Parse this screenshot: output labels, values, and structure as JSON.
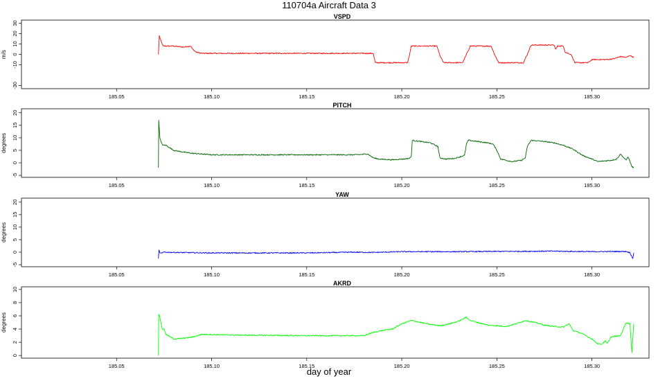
{
  "title": "110704a   Aircraft Data 3",
  "xlabel": "day of year",
  "chart_data": [
    {
      "type": "line",
      "title": "VSPD",
      "ylabel": "m/s",
      "color": "#ff0000",
      "xlim": [
        185.0,
        185.33
      ],
      "ylim": [
        -33,
        33
      ],
      "xticks": [
        185.05,
        185.1,
        185.15,
        185.2,
        185.25,
        185.3
      ],
      "xtick_labels": [
        "185.05",
        "185.10",
        "185.15",
        "185.20",
        "185.25",
        "185.30"
      ],
      "yticks": [
        -30,
        -10,
        0,
        10,
        20,
        30
      ],
      "ytick_labels": [
        "-30",
        "-10",
        "0",
        "10",
        "20",
        "30"
      ],
      "series": [
        {
          "x": [
            185.072,
            185.0725,
            185.0735,
            185.0745,
            185.076,
            185.08,
            185.085,
            185.089,
            185.09,
            185.092,
            185.095,
            185.12,
            185.15,
            185.175,
            185.1778,
            185.1785,
            185.185,
            185.186,
            185.195,
            185.203,
            185.204,
            185.205,
            185.21,
            185.2185,
            185.22,
            185.222,
            185.225,
            185.232,
            185.234,
            185.236,
            185.24,
            185.247,
            185.249,
            185.251,
            185.26,
            185.264,
            185.266,
            185.268,
            185.275,
            185.28,
            185.281,
            185.282,
            185.285,
            185.286,
            185.289,
            185.291,
            185.298,
            185.3,
            185.308,
            185.312,
            185.315,
            185.318,
            185.32,
            185.322
          ],
          "y": [
            0,
            18,
            12,
            8,
            8,
            8,
            7,
            8,
            5,
            2,
            1,
            1,
            1,
            1,
            1,
            1,
            1,
            -8,
            -8,
            -8,
            -1,
            8,
            8,
            8,
            -1,
            -8,
            -8,
            -8,
            0,
            8,
            8,
            8,
            -1,
            -8,
            -8,
            -8,
            0,
            9,
            9,
            9,
            5,
            8,
            8,
            2,
            0,
            -8,
            -8,
            -5,
            -5,
            -4,
            -2,
            -3,
            -1,
            -3
          ]
        }
      ]
    },
    {
      "type": "line",
      "title": "PITCH",
      "ylabel": "degrees",
      "color": "#006400",
      "xlim": [
        185.0,
        185.33
      ],
      "ylim": [
        -5.8,
        21.6
      ],
      "xticks": [
        185.05,
        185.1,
        185.15,
        185.2,
        185.25,
        185.3
      ],
      "xtick_labels": [
        "185.05",
        "185.10",
        "185.15",
        "185.20",
        "185.25",
        "185.30"
      ],
      "yticks": [
        -5,
        0,
        5,
        10,
        15,
        20
      ],
      "ytick_labels": [
        "-5",
        "0",
        "5",
        "10",
        "15",
        "20"
      ],
      "series": [
        {
          "x": [
            185.072,
            185.0722,
            185.0728,
            185.0735,
            185.0745,
            185.076,
            185.078,
            185.08,
            185.085,
            185.09,
            185.095,
            185.1,
            185.13,
            185.16,
            185.175,
            185.1785,
            185.182,
            185.185,
            185.188,
            185.195,
            185.2,
            185.201,
            185.204,
            185.205,
            185.2055,
            185.21,
            185.215,
            185.219,
            185.22,
            185.223,
            185.228,
            185.231,
            185.233,
            185.234,
            185.235,
            185.24,
            185.245,
            185.248,
            185.25,
            185.252,
            185.258,
            185.263,
            185.265,
            185.266,
            185.268,
            185.275,
            185.28,
            185.285,
            185.29,
            185.295,
            185.3,
            185.303,
            185.31,
            185.313,
            185.315,
            185.318,
            185.319,
            185.32,
            185.321,
            185.322
          ],
          "y": [
            -2,
            17,
            10,
            8,
            7,
            7,
            6,
            5,
            4.3,
            3.8,
            3.5,
            3.2,
            3.2,
            3.2,
            3.2,
            3.3,
            3.6,
            2.0,
            1.5,
            1.2,
            1.5,
            1.5,
            1.8,
            2.5,
            9.0,
            8.5,
            8.0,
            6.5,
            2.0,
            1.5,
            1.8,
            2.5,
            3.0,
            7.5,
            9.0,
            8.5,
            8.0,
            7.5,
            5.0,
            1.5,
            0.5,
            1.0,
            2.0,
            6.5,
            9.0,
            8.5,
            8.0,
            7.0,
            5.5,
            3.0,
            1.5,
            0.5,
            1.0,
            1.5,
            3.5,
            1.0,
            2.5,
            0.5,
            -1.5,
            -2.0
          ]
        }
      ]
    },
    {
      "type": "line",
      "title": "YAW",
      "ylabel": "degrees",
      "color": "#0000ff",
      "xlim": [
        185.0,
        185.33
      ],
      "ylim": [
        -5.8,
        21.6
      ],
      "xticks": [
        185.05,
        185.1,
        185.15,
        185.2,
        185.25,
        185.3
      ],
      "xtick_labels": [
        "185.05",
        "185.10",
        "185.15",
        "185.20",
        "185.25",
        "185.30"
      ],
      "yticks": [
        -5,
        0,
        5,
        10,
        15,
        20
      ],
      "ytick_labels": [
        "-5",
        "0",
        "5",
        "10",
        "15",
        "20"
      ],
      "series": [
        {
          "x": [
            185.072,
            185.0723,
            185.073,
            185.075,
            185.09,
            185.1,
            185.15,
            185.175,
            185.185,
            185.2,
            185.23,
            185.25,
            185.28,
            185.3,
            185.318,
            185.32,
            185.3215,
            185.322
          ],
          "y": [
            -2.5,
            0.8,
            -0.5,
            0,
            -0.2,
            -0.3,
            -0.3,
            0,
            -0.1,
            0.2,
            0.2,
            0.3,
            0.4,
            0.2,
            0.3,
            -0.2,
            -2.5,
            -0.2
          ]
        }
      ]
    },
    {
      "type": "line",
      "title": "AKRD",
      "ylabel": "degrees",
      "color": "#00ff00",
      "xlim": [
        185.0,
        185.33
      ],
      "ylim": [
        -0.4,
        10.4
      ],
      "xticks": [
        185.05,
        185.1,
        185.15,
        185.2,
        185.25,
        185.3
      ],
      "xtick_labels": [
        "185.05",
        "185.10",
        "185.15",
        "185.20",
        "185.25",
        "185.30"
      ],
      "yticks": [
        0,
        2,
        4,
        6,
        8,
        10
      ],
      "ytick_labels": [
        "0",
        "2",
        "4",
        "6",
        "8",
        "10"
      ],
      "series": [
        {
          "x": [
            185.072,
            185.0722,
            185.073,
            185.074,
            185.075,
            185.076,
            185.08,
            185.085,
            185.09,
            185.095,
            185.11,
            185.15,
            185.175,
            185.18,
            185.185,
            185.19,
            185.195,
            185.2,
            185.205,
            185.21,
            185.215,
            185.22,
            185.225,
            185.23,
            185.234,
            185.236,
            185.24,
            185.245,
            185.25,
            185.255,
            185.26,
            185.265,
            185.27,
            185.275,
            185.28,
            185.285,
            185.288,
            185.29,
            185.295,
            185.298,
            185.3,
            185.303,
            185.305,
            185.307,
            185.308,
            185.31,
            185.312,
            185.315,
            185.318,
            185.32,
            185.321,
            185.322
          ],
          "y": [
            0,
            6.3,
            5.5,
            4.0,
            4.0,
            3.2,
            2.5,
            2.6,
            2.8,
            3.2,
            3.1,
            3.0,
            3.0,
            3.0,
            3.5,
            3.8,
            4.0,
            4.8,
            5.3,
            5.0,
            4.7,
            4.5,
            4.8,
            5.2,
            5.8,
            5.3,
            5.0,
            4.6,
            4.5,
            4.4,
            4.8,
            5.3,
            5.0,
            4.6,
            4.4,
            4.3,
            4.8,
            3.8,
            3.3,
            2.8,
            2.5,
            1.8,
            1.7,
            2.2,
            1.8,
            2.8,
            2.9,
            3.0,
            5.0,
            4.8,
            0.5,
            4.8
          ]
        }
      ]
    }
  ]
}
